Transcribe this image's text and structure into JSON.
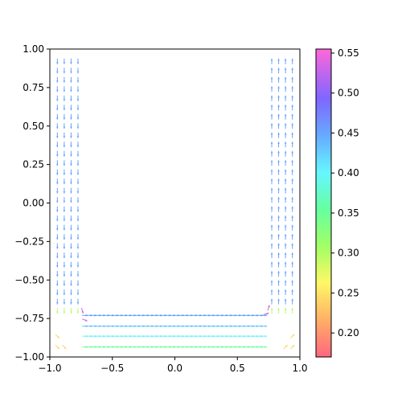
{
  "chart_data": {
    "type": "quiver",
    "title": "",
    "xlabel": "",
    "ylabel": "",
    "xlim": [
      -1.0,
      1.0
    ],
    "ylim": [
      -1.0,
      1.0
    ],
    "x_ticks": [
      "−1.0",
      "−0.5",
      "0.0",
      "0.5",
      "1.0"
    ],
    "x_tick_values": [
      -1.0,
      -0.5,
      0.0,
      0.5,
      1.0
    ],
    "y_ticks": [
      "1.00",
      "0.75",
      "0.50",
      "0.25",
      "0.00",
      "−0.25",
      "−0.50",
      "−0.75",
      "−1.00"
    ],
    "y_tick_values": [
      1.0,
      0.75,
      0.5,
      0.25,
      0.0,
      -0.25,
      -0.5,
      -0.75,
      -1.0
    ],
    "grid": false,
    "colorbar": {
      "range": [
        0.17,
        0.555
      ],
      "ticks": [
        "0.55",
        "0.50",
        "0.45",
        "0.40",
        "0.35",
        "0.30",
        "0.25",
        "0.20"
      ],
      "tick_values": [
        0.55,
        0.5,
        0.45,
        0.4,
        0.35,
        0.3,
        0.25,
        0.2
      ],
      "colormap": "gist_rainbow",
      "alpha": 0.6
    },
    "field": {
      "description_of_geometry": "U-shaped channel flow: down left leg, along bottom, up right leg",
      "left_columns_x": [
        -0.94,
        -0.885,
        -0.83,
        -0.775
      ],
      "right_columns_x": [
        0.94,
        0.885,
        0.83,
        0.775
      ],
      "bottom_rows_y": [
        -0.935,
        -0.865,
        -0.8,
        -0.73
      ],
      "vertical_range": [
        -0.72,
        0.92
      ],
      "horizontal_range": [
        -0.72,
        0.72
      ],
      "speed_vertical": 0.45,
      "speed_bottom_rows": [
        0.35,
        0.4,
        0.43,
        0.45
      ],
      "speed_corner": 0.53,
      "speed_outer_corner": 0.24
    }
  }
}
